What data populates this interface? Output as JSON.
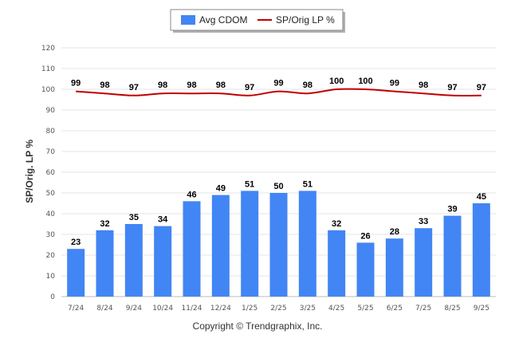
{
  "chart_data": {
    "type": "bar",
    "title": "",
    "xlabel": "",
    "ylabel": "SP/Orig. LP %",
    "ylim": [
      0,
      120
    ],
    "yticks": [
      0,
      10,
      20,
      30,
      40,
      50,
      60,
      70,
      80,
      90,
      100,
      110,
      120
    ],
    "grid": true,
    "legend_position": "top-center",
    "categories": [
      "7/24",
      "8/24",
      "9/24",
      "10/24",
      "11/24",
      "12/24",
      "1/25",
      "2/25",
      "3/25",
      "4/25",
      "5/25",
      "6/25",
      "7/25",
      "8/25",
      "9/25"
    ],
    "series": [
      {
        "name": "Avg CDOM",
        "type": "bar",
        "color": "#4285f4",
        "values": [
          23,
          32,
          35,
          34,
          46,
          49,
          51,
          50,
          51,
          32,
          26,
          28,
          33,
          39,
          45
        ]
      },
      {
        "name": "SP/Orig LP %",
        "type": "line",
        "color": "#c00000",
        "values": [
          99,
          98,
          97,
          98,
          98,
          98,
          97,
          99,
          98,
          100,
          100,
          99,
          98,
          97,
          97
        ]
      }
    ]
  },
  "footer": {
    "copyright": "Copyright © Trendgraphix, Inc."
  }
}
